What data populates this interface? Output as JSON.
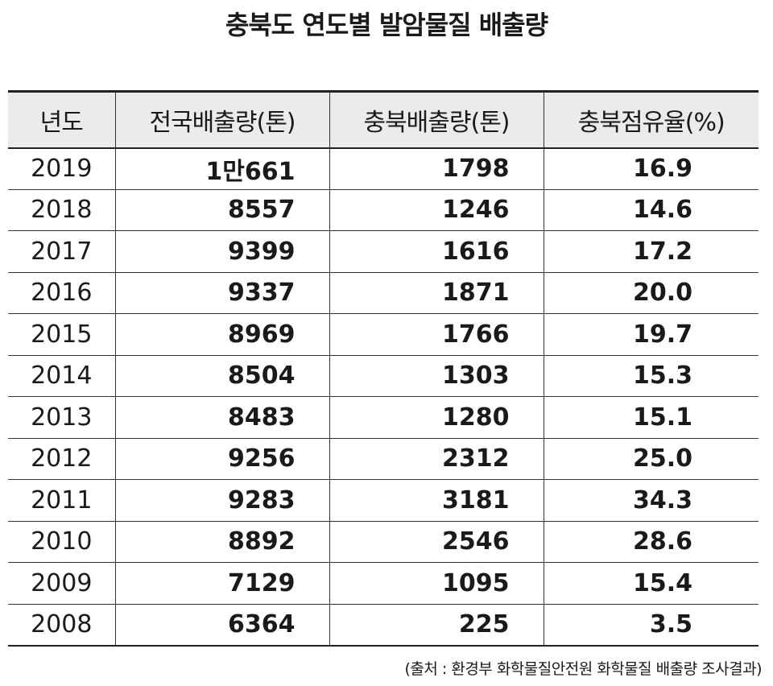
{
  "chart_data": {
    "type": "table",
    "title": "충북도 연도별 발암물질 배출량",
    "columns": [
      "년도",
      "전국배출량(톤)",
      "충북배출량(톤)",
      "충북점유율(%)"
    ],
    "rows": [
      [
        "2019",
        "1만661",
        "1798",
        "16.9"
      ],
      [
        "2018",
        "8557",
        "1246",
        "14.6"
      ],
      [
        "2017",
        "9399",
        "1616",
        "17.2"
      ],
      [
        "2016",
        "9337",
        "1871",
        "20.0"
      ],
      [
        "2015",
        "8969",
        "1766",
        "19.7"
      ],
      [
        "2014",
        "8504",
        "1303",
        "15.3"
      ],
      [
        "2013",
        "8483",
        "1280",
        "15.1"
      ],
      [
        "2012",
        "9256",
        "2312",
        "25.0"
      ],
      [
        "2011",
        "9283",
        "3181",
        "34.3"
      ],
      [
        "2010",
        "8892",
        "2546",
        "28.6"
      ],
      [
        "2009",
        "7129",
        "1095",
        "15.4"
      ],
      [
        "2008",
        "6364",
        "225",
        "3.5"
      ]
    ],
    "source": "(출처 : 환경부 화학물질안전원 화학물질 배출량 조사결과)"
  },
  "colors": {
    "header_bg": "#ebebeb",
    "text": "#1a1a1a",
    "rule": "#222222"
  }
}
